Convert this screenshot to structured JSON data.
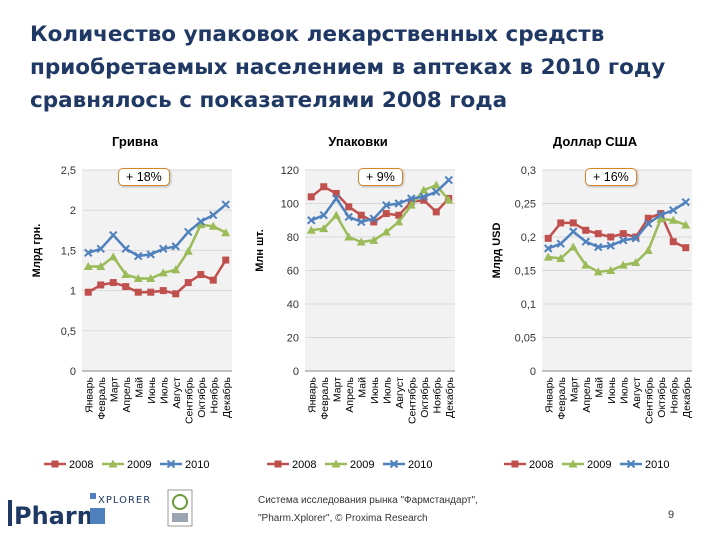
{
  "slide": {
    "title": "Количество упаковок лекарственных средств приобретаемых населением в аптеках в 2010 году сравнялось с показателями 2008 года",
    "footer_line1": "Система исследования рынка \"Фармстандарт\",",
    "footer_line2": "\"Pharm.Xplorer\", © Proxima Research",
    "page_number": "9",
    "logo_text": "Pharm",
    "logo_text2": "XPLORER"
  },
  "colors": {
    "s2008": "#c0504d",
    "s2009": "#9bbb59",
    "s2010": "#4f81bd",
    "title": "#1f3864",
    "badge_border": "#d4852a",
    "grid": "#d9d9d9"
  },
  "chart_data": [
    {
      "type": "line",
      "title": "Гривна",
      "ylabel": "Млрд грн.",
      "badge": "+ 18%",
      "ylim": [
        0,
        2.5
      ],
      "yticks": [
        0,
        0.5,
        1,
        1.5,
        2,
        2.5
      ],
      "yticklabels": [
        "0",
        "0,5",
        "1",
        "1,5",
        "2",
        "2,5"
      ],
      "categories": [
        "Январь",
        "Февраль",
        "Март",
        "Апрель",
        "Май",
        "Июнь",
        "Июль",
        "Август",
        "Сентябрь",
        "Октябрь",
        "Ноябрь",
        "Декабрь"
      ],
      "series": [
        {
          "name": "2008",
          "values": [
            0.98,
            1.07,
            1.1,
            1.05,
            0.98,
            0.98,
            1.0,
            0.96,
            1.1,
            1.2,
            1.13,
            1.38
          ]
        },
        {
          "name": "2009",
          "values": [
            1.3,
            1.3,
            1.42,
            1.2,
            1.15,
            1.15,
            1.22,
            1.26,
            1.49,
            1.82,
            1.8,
            1.72
          ]
        },
        {
          "name": "2010",
          "values": [
            1.47,
            1.52,
            1.69,
            1.52,
            1.43,
            1.45,
            1.52,
            1.55,
            1.73,
            1.86,
            1.94,
            2.07
          ]
        }
      ]
    },
    {
      "type": "line",
      "title": "Упаковки",
      "ylabel": "Млн шт.",
      "badge": "+ 9%",
      "ylim": [
        0,
        120
      ],
      "yticks": [
        0,
        20,
        40,
        60,
        80,
        100,
        120
      ],
      "yticklabels": [
        "0",
        "20",
        "40",
        "60",
        "80",
        "100",
        "120"
      ],
      "categories": [
        "Январь",
        "Февраль",
        "Март",
        "Апрель",
        "Май",
        "Июнь",
        "Июль",
        "Август",
        "Сентябрь",
        "Октябрь",
        "Ноябрь",
        "Декабрь"
      ],
      "series": [
        {
          "name": "2008",
          "values": [
            104,
            110,
            106,
            98,
            93,
            89,
            94,
            93,
            101,
            102,
            95,
            103
          ]
        },
        {
          "name": "2009",
          "values": [
            84,
            85,
            93,
            80,
            77,
            78,
            83,
            89,
            99,
            108,
            111,
            102
          ]
        },
        {
          "name": "2010",
          "values": [
            90,
            93,
            103,
            92,
            89,
            91,
            99,
            100,
            103,
            104,
            107,
            114
          ]
        }
      ]
    },
    {
      "type": "line",
      "title": "Доллар США",
      "ylabel": "Млрд USD",
      "badge": "+ 16%",
      "ylim": [
        0,
        0.3
      ],
      "yticks": [
        0,
        0.05,
        0.1,
        0.15,
        0.2,
        0.25,
        0.3
      ],
      "yticklabels": [
        "0",
        "0,05",
        "0,1",
        "0,15",
        "0,2",
        "0,25",
        "0,3"
      ],
      "categories": [
        "Январь",
        "Февраль",
        "Март",
        "Апрель",
        "Май",
        "Июнь",
        "Июль",
        "Август",
        "Сентябрь",
        "Октябрь",
        "Ноябрь",
        "Декабрь"
      ],
      "series": [
        {
          "name": "2008",
          "values": [
            0.198,
            0.221,
            0.221,
            0.21,
            0.205,
            0.2,
            0.205,
            0.2,
            0.228,
            0.235,
            0.193,
            0.184
          ]
        },
        {
          "name": "2009",
          "values": [
            0.17,
            0.168,
            0.185,
            0.158,
            0.148,
            0.15,
            0.158,
            0.162,
            0.18,
            0.227,
            0.225,
            0.218
          ]
        },
        {
          "name": "2010",
          "values": [
            0.183,
            0.19,
            0.208,
            0.193,
            0.185,
            0.187,
            0.195,
            0.198,
            0.22,
            0.233,
            0.24,
            0.252
          ]
        }
      ]
    }
  ]
}
